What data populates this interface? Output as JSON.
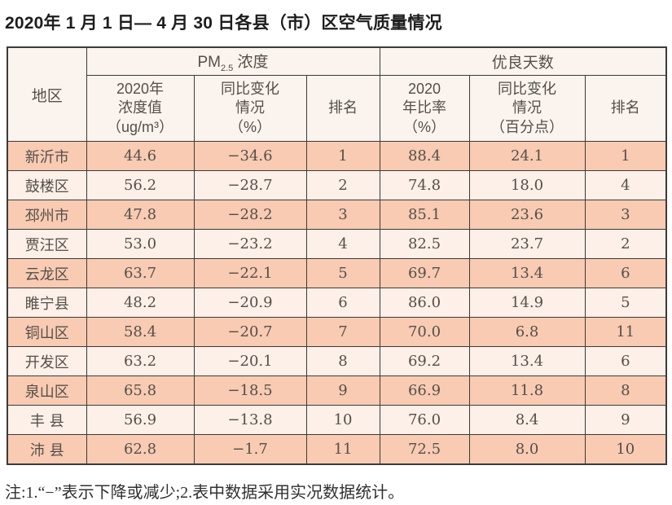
{
  "page_title": "2020年 1 月 1 日— 4 月 30 日各县（市）区空气质量情况",
  "colors": {
    "row_odd": "#f8cbb2",
    "row_even": "#fcf0e8",
    "header_bg": "#faf3ee",
    "border": "#3e3a37",
    "text": "#554f4a"
  },
  "table": {
    "corner_header": "地区",
    "group_pm": {
      "base": "PM",
      "sub": "2.5",
      "rest": " 浓度"
    },
    "group_good": "优良天数",
    "sub_headers": [
      "2020年\n浓度值\n（ug/m³）",
      "同比变化\n情况\n（%）",
      "排名",
      "2020\n年比率\n（%）",
      "同比变化\n情况\n（百分点）",
      "排名"
    ],
    "rows": [
      {
        "region": "新沂市",
        "pm_value": "44.6",
        "pm_change": "−34.6",
        "pm_rank": "1",
        "rate": "88.4",
        "rate_change": "24.1",
        "rate_rank": "1"
      },
      {
        "region": "鼓楼区",
        "pm_value": "56.2",
        "pm_change": "−28.7",
        "pm_rank": "2",
        "rate": "74.8",
        "rate_change": "18.0",
        "rate_rank": "4"
      },
      {
        "region": "邳州市",
        "pm_value": "47.8",
        "pm_change": "−28.2",
        "pm_rank": "3",
        "rate": "85.1",
        "rate_change": "23.6",
        "rate_rank": "3"
      },
      {
        "region": "贾汪区",
        "pm_value": "53.0",
        "pm_change": "−23.2",
        "pm_rank": "4",
        "rate": "82.5",
        "rate_change": "23.7",
        "rate_rank": "2"
      },
      {
        "region": "云龙区",
        "pm_value": "63.7",
        "pm_change": "−22.1",
        "pm_rank": "5",
        "rate": "69.7",
        "rate_change": "13.4",
        "rate_rank": "6"
      },
      {
        "region": "睢宁县",
        "pm_value": "48.2",
        "pm_change": "−20.9",
        "pm_rank": "6",
        "rate": "86.0",
        "rate_change": "14.9",
        "rate_rank": "5"
      },
      {
        "region": "铜山区",
        "pm_value": "58.4",
        "pm_change": "−20.7",
        "pm_rank": "7",
        "rate": "70.0",
        "rate_change": "6.8",
        "rate_rank": "11"
      },
      {
        "region": "开发区",
        "pm_value": "63.2",
        "pm_change": "−20.1",
        "pm_rank": "8",
        "rate": "69.2",
        "rate_change": "13.4",
        "rate_rank": "6"
      },
      {
        "region": "泉山区",
        "pm_value": "65.8",
        "pm_change": "−18.5",
        "pm_rank": "9",
        "rate": "66.9",
        "rate_change": "11.8",
        "rate_rank": "8"
      },
      {
        "region": "丰 县",
        "pm_value": "56.9",
        "pm_change": "−13.8",
        "pm_rank": "10",
        "rate": "76.0",
        "rate_change": "8.4",
        "rate_rank": "9"
      },
      {
        "region": "沛 县",
        "pm_value": "62.8",
        "pm_change": "−1.7",
        "pm_rank": "11",
        "rate": "72.5",
        "rate_change": "8.0",
        "rate_rank": "10"
      }
    ]
  },
  "footnote": "注:1.“−”表示下降或减少;2.表中数据采用实况数据统计。",
  "chart_data": {
    "type": "table",
    "title": "2020年1月1日—4月30日各县（市）区空气质量情况",
    "column_groups": [
      {
        "label": "PM2.5浓度",
        "spans_columns": [
          1,
          2,
          3
        ]
      },
      {
        "label": "优良天数",
        "spans_columns": [
          4,
          5,
          6
        ]
      }
    ],
    "columns": [
      "地区",
      "PM2.5 2020年浓度值（ug/m³）",
      "PM2.5 同比变化情况（%）",
      "PM2.5 排名",
      "优良天数 2020年比率（%）",
      "优良天数 同比变化情况（百分点）",
      "优良天数 排名"
    ],
    "rows": [
      [
        "新沂市",
        44.6,
        -34.6,
        1,
        88.4,
        24.1,
        1
      ],
      [
        "鼓楼区",
        56.2,
        -28.7,
        2,
        74.8,
        18.0,
        4
      ],
      [
        "邳州市",
        47.8,
        -28.2,
        3,
        85.1,
        23.6,
        3
      ],
      [
        "贾汪区",
        53.0,
        -23.2,
        4,
        82.5,
        23.7,
        2
      ],
      [
        "云龙区",
        63.7,
        -22.1,
        5,
        69.7,
        13.4,
        6
      ],
      [
        "睢宁县",
        48.2,
        -20.9,
        6,
        86.0,
        14.9,
        5
      ],
      [
        "铜山区",
        58.4,
        -20.7,
        7,
        70.0,
        6.8,
        11
      ],
      [
        "开发区",
        63.2,
        -20.1,
        8,
        69.2,
        13.4,
        6
      ],
      [
        "泉山区",
        65.8,
        -18.5,
        9,
        66.9,
        11.8,
        8
      ],
      [
        "丰县",
        56.9,
        -13.8,
        10,
        76.0,
        8.4,
        9
      ],
      [
        "沛县",
        62.8,
        -1.7,
        11,
        72.5,
        8.0,
        10
      ]
    ],
    "footnote": "注:1.“−”表示下降或减少;2.表中数据采用实况数据统计。"
  }
}
